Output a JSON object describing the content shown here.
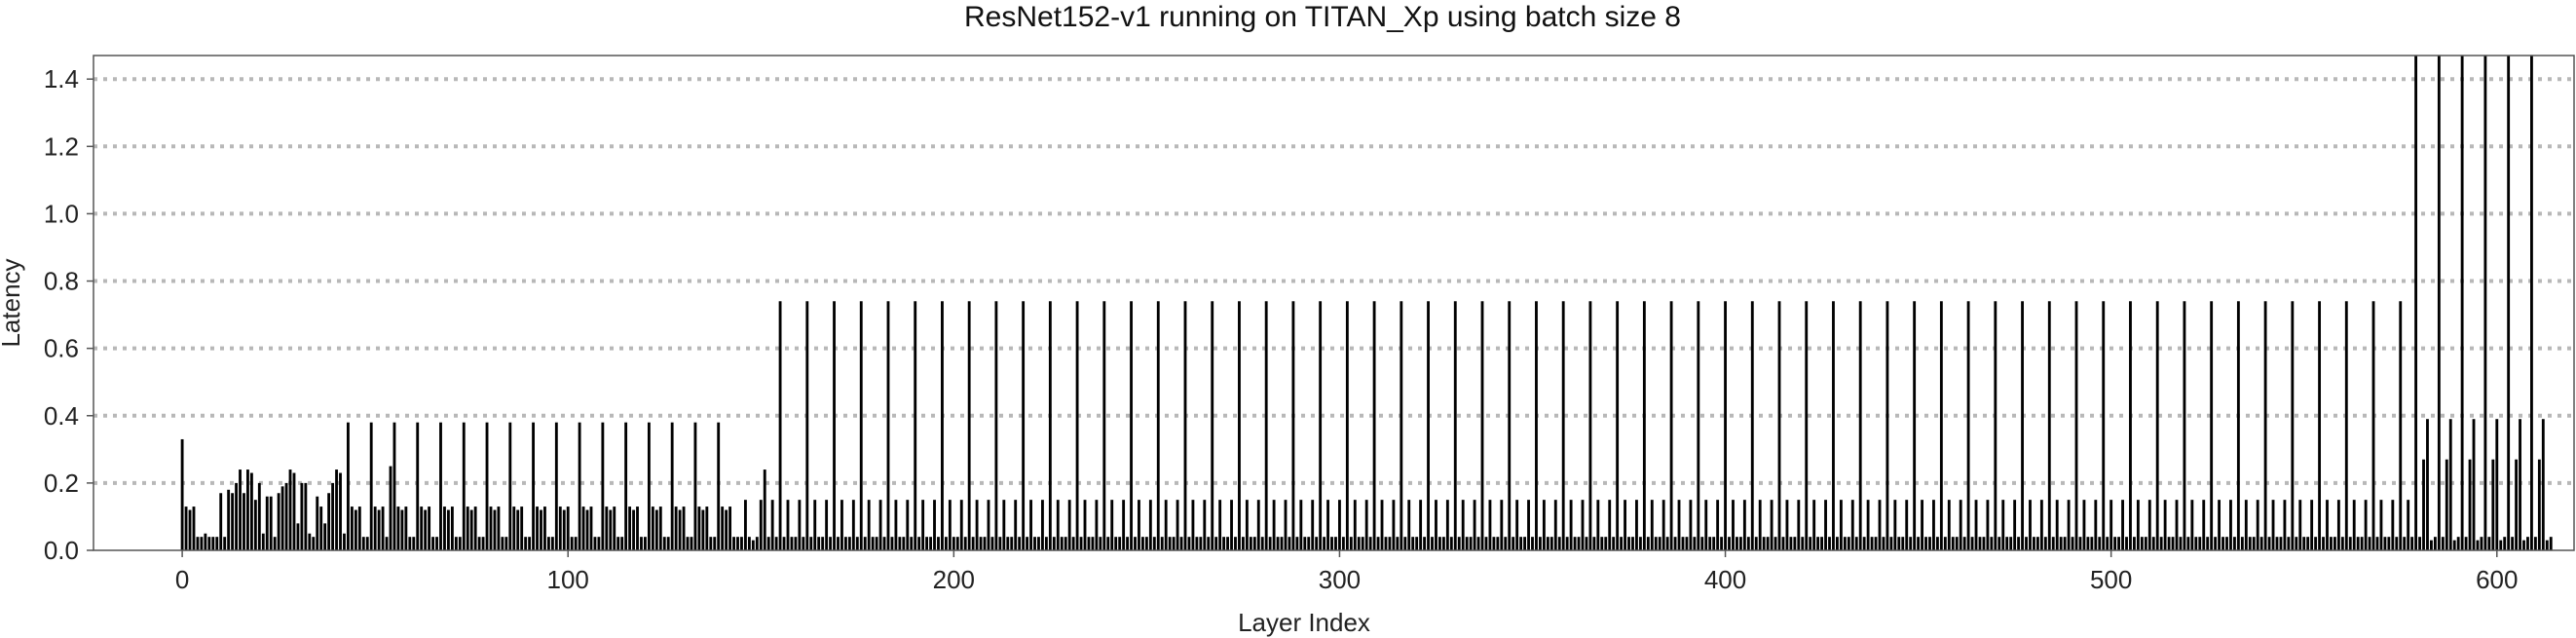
{
  "chart_data": {
    "type": "bar",
    "title": "ResNet152-v1 running on TITAN_Xp using batch size 8",
    "xlabel": "Layer Index",
    "ylabel": "Latency",
    "xlim": [
      -23,
      620
    ],
    "ylim": [
      0,
      1.47
    ],
    "grid": "horizontal dotted",
    "xticks": [
      "0",
      "100",
      "200",
      "300",
      "400",
      "500",
      "600"
    ],
    "yticks": [
      "0.0",
      "0.2",
      "0.4",
      "0.6",
      "0.8",
      "1.0",
      "1.2",
      "1.4"
    ],
    "bar_color": "#000000",
    "grid_color": "#b8b8b8",
    "segments": [
      {
        "x_start": 0,
        "values": [
          0.33,
          0.13,
          0.12,
          0.13,
          0.04,
          0.04,
          0.05,
          0.04,
          0.04,
          0.04,
          0.17,
          0.04,
          0.18,
          0.17,
          0.2,
          0.24,
          0.17,
          0.24,
          0.23,
          0.15,
          0.2,
          0.05,
          0.16,
          0.16,
          0.04,
          0.17,
          0.19,
          0.2,
          0.24,
          0.23,
          0.08,
          0.2,
          0.2,
          0.05,
          0.04,
          0.16,
          0.13,
          0.08,
          0.17,
          0.2,
          0.24,
          0.23,
          0.05
        ]
      },
      {
        "x_start": 43,
        "period": 6,
        "repeat": 17,
        "values": [
          0.38,
          0.13,
          0.12,
          0.13,
          0.04,
          0.04
        ]
      },
      {
        "x_start": 145,
        "period": 7,
        "repeat": 62,
        "values": [
          0.04,
          0.15,
          0.04,
          0.74,
          0.04,
          0.15,
          0.04
        ]
      },
      {
        "x_start": 579,
        "period": 6,
        "repeat": 6,
        "values": [
          1.48,
          0.04,
          0.27,
          0.39,
          0.03,
          0.04
        ]
      }
    ],
    "overrides": [
      {
        "x": 44,
        "value": 0.13
      },
      {
        "x": 54,
        "value": 0.25
      },
      {
        "x": 151,
        "value": 0.24
      },
      {
        "x": 148,
        "value": 0.03
      }
    ]
  }
}
